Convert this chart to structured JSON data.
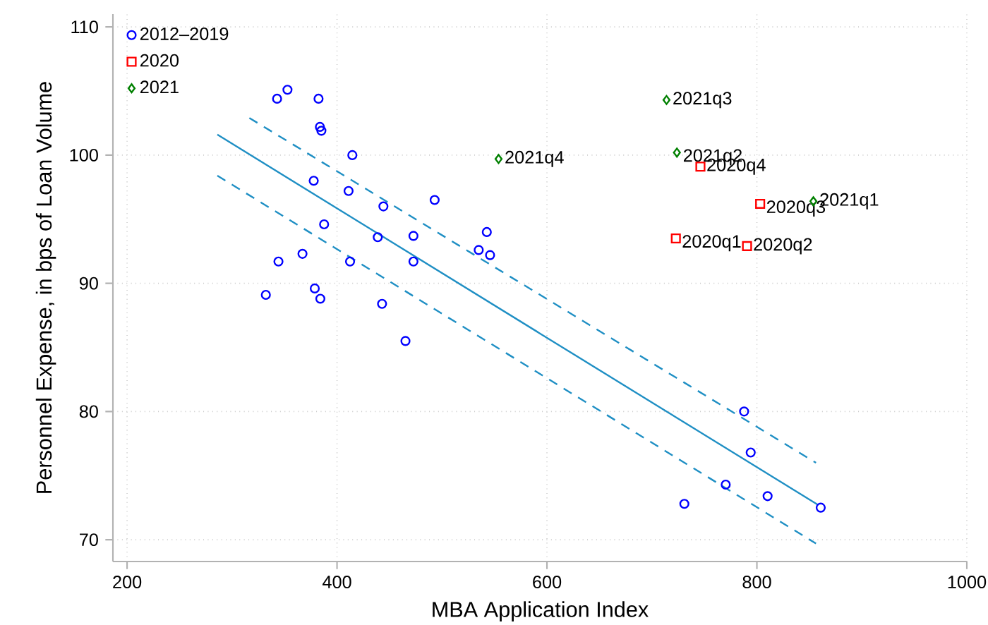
{
  "chart_data": {
    "type": "scatter",
    "xlabel": "MBA Application Index",
    "ylabel": "Personnel Expense, in bps of Loan Volume",
    "xlim": [
      186.5,
      1000
    ],
    "ylim": [
      68.3,
      111
    ],
    "xticks": [
      200,
      400,
      600,
      800,
      1000
    ],
    "yticks": [
      70,
      80,
      90,
      100,
      110
    ],
    "grid": true,
    "legend": "top left",
    "series": [
      {
        "name": "2012–2019",
        "color": "#0000ff",
        "marker": "circle",
        "x": [
          342.9,
          352.8,
          382.4,
          383.7,
          385.1,
          414.6,
          377.8,
          411.0,
          444.2,
          493.0,
          387.7,
          438.8,
          472.8,
          542.7,
          535.0,
          545.8,
          472.8,
          412.4,
          344.2,
          367.1,
          332.2,
          378.8,
          384.1,
          442.9,
          465.2,
          787.8,
          794.1,
          770.3,
          810.2,
          730.9,
          860.8
        ],
        "values": [
          104.4,
          105.1,
          104.4,
          102.2,
          101.9,
          100.0,
          98.0,
          97.2,
          96.0,
          96.5,
          94.6,
          93.6,
          93.7,
          94.0,
          92.6,
          92.2,
          91.7,
          91.7,
          91.7,
          92.3,
          89.1,
          89.6,
          88.8,
          88.4,
          85.5,
          80.0,
          76.8,
          74.3,
          73.4,
          72.8,
          72.5
        ]
      },
      {
        "name": "2020",
        "color": "#ff0000",
        "marker": "square",
        "x": [
          722.8,
          790.6,
          803.1,
          746.2
        ],
        "values": [
          93.5,
          92.9,
          96.2,
          99.1
        ]
      },
      {
        "name": "2021",
        "color": "#008000",
        "marker": "diamond",
        "x": [
          853.8,
          723.8,
          713.9,
          553.9
        ],
        "values": [
          96.4,
          100.2,
          104.3,
          99.7
        ]
      },
      {
        "type": "line",
        "color": "#1f8fc4",
        "marker": "none",
        "line_style": "solid",
        "x": [
          286.0,
          858.6
        ],
        "values": [
          101.6,
          72.7
        ]
      },
      {
        "type": "line",
        "color": "#1f8fc4",
        "marker": "none",
        "line_style": "dashed",
        "x": [
          316.5,
          856.3
        ],
        "values": [
          102.9,
          76.0
        ]
      },
      {
        "type": "line",
        "color": "#1f8fc4",
        "marker": "none",
        "line_style": "dashed",
        "x": [
          286.0,
          856.3
        ],
        "values": [
          98.4,
          69.7
        ]
      }
    ],
    "annotations": [
      {
        "text": "2020q1",
        "x": 722.8,
        "y": 93.5
      },
      {
        "text": "2020q2",
        "x": 790.6,
        "y": 92.9
      },
      {
        "text": "2020q3",
        "x": 803.1,
        "y": 96.2
      },
      {
        "text": "2020q4",
        "x": 746.2,
        "y": 99.1
      },
      {
        "text": "2021q1",
        "x": 853.8,
        "y": 96.4
      },
      {
        "text": "2021q2",
        "x": 723.8,
        "y": 100.2
      },
      {
        "text": "2021q3",
        "x": 713.9,
        "y": 104.3
      },
      {
        "text": "2021q4",
        "x": 553.9,
        "y": 99.7
      }
    ]
  }
}
